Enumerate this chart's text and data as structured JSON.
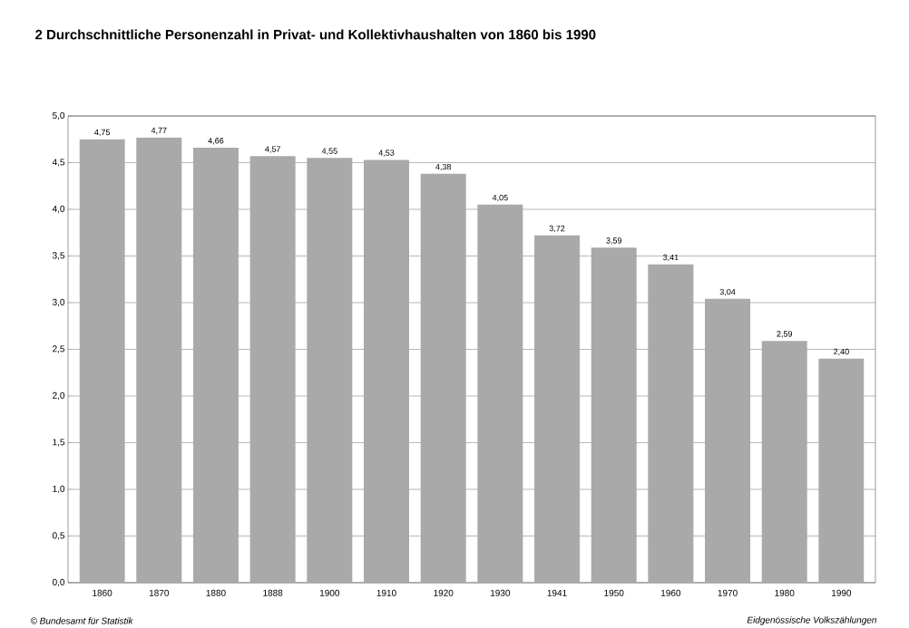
{
  "chart_data": {
    "type": "bar",
    "title": "2     Durchschnittliche Personenzahl in Privat- und Kollektivhaushalten von 1860 bis 1990",
    "categories": [
      "1860",
      "1870",
      "1880",
      "1888",
      "1900",
      "1910",
      "1920",
      "1930",
      "1941",
      "1950",
      "1960",
      "1970",
      "1980",
      "1990"
    ],
    "values": [
      4.75,
      4.77,
      4.66,
      4.57,
      4.55,
      4.53,
      4.38,
      4.05,
      3.72,
      3.59,
      3.41,
      3.04,
      2.59,
      2.4
    ],
    "value_labels": [
      "4,75",
      "4,77",
      "4,66",
      "4,57",
      "4,55",
      "4,53",
      "4,38",
      "4,05",
      "3,72",
      "3,59",
      "3,41",
      "3,04",
      "2,59",
      "2,40"
    ],
    "color": "#a9a9a9",
    "ylim": [
      0,
      5
    ],
    "yticks": [
      {
        "value": 0,
        "label": "0,0"
      },
      {
        "value": 0.5,
        "label": "0,5"
      },
      {
        "value": 1,
        "label": "1,0"
      },
      {
        "value": 1.5,
        "label": "1,5"
      },
      {
        "value": 2,
        "label": "2,0"
      },
      {
        "value": 2.5,
        "label": "2,5"
      },
      {
        "value": 3,
        "label": "3,0"
      },
      {
        "value": 3.5,
        "label": "3,5"
      },
      {
        "value": 4,
        "label": "4,0"
      },
      {
        "value": 4.5,
        "label": "4,5"
      },
      {
        "value": 5,
        "label": "5,0"
      }
    ],
    "grid": "y",
    "annotations": [
      "© Bundesamt für Statistik",
      "Eidgenössische Volkszählungen"
    ]
  }
}
